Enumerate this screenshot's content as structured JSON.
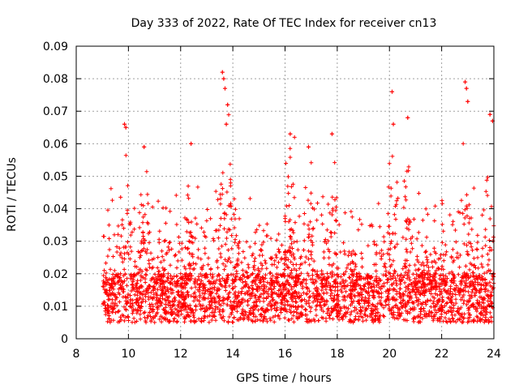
{
  "chart_data": {
    "type": "scatter",
    "title": "Day 333 of 2022, Rate Of TEC Index for receiver cn13",
    "xlabel": "GPS time / hours",
    "ylabel": "ROTI / TECUs",
    "xlim": [
      8,
      24
    ],
    "ylim": [
      0,
      0.09
    ],
    "xticks": [
      "8",
      "10",
      "12",
      "14",
      "16",
      "18",
      "20",
      "22",
      "24"
    ],
    "yticks": [
      "0",
      "0.01",
      "0.02",
      "0.03",
      "0.04",
      "0.05",
      "0.06",
      "0.07",
      "0.08",
      "0.09"
    ],
    "grid": true,
    "marker": "+",
    "series": [
      {
        "name": "ROTI",
        "color": "#ff0000",
        "x_range": [
          9.0,
          24.0
        ],
        "baseline_range": [
          0.005,
          0.02
        ],
        "notable_points": [
          {
            "x": 9.85,
            "y": 0.066
          },
          {
            "x": 9.9,
            "y": 0.065
          },
          {
            "x": 10.6,
            "y": 0.059
          },
          {
            "x": 12.4,
            "y": 0.06
          },
          {
            "x": 13.6,
            "y": 0.082
          },
          {
            "x": 13.65,
            "y": 0.08
          },
          {
            "x": 13.7,
            "y": 0.077
          },
          {
            "x": 13.75,
            "y": 0.066
          },
          {
            "x": 13.8,
            "y": 0.072
          },
          {
            "x": 16.2,
            "y": 0.063
          },
          {
            "x": 16.9,
            "y": 0.059
          },
          {
            "x": 17.8,
            "y": 0.063
          },
          {
            "x": 20.1,
            "y": 0.076
          },
          {
            "x": 20.15,
            "y": 0.066
          },
          {
            "x": 20.7,
            "y": 0.068
          },
          {
            "x": 22.9,
            "y": 0.079
          },
          {
            "x": 22.95,
            "y": 0.077
          },
          {
            "x": 23.0,
            "y": 0.073
          },
          {
            "x": 23.85,
            "y": 0.069
          },
          {
            "x": 23.95,
            "y": 0.067
          }
        ]
      }
    ]
  }
}
